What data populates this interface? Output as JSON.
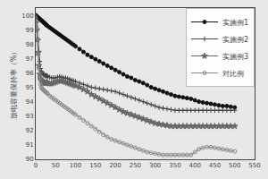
{
  "chart_data": {
    "type": "line",
    "ylabel": "放电容量保持率（%）",
    "xlim": [
      0,
      550
    ],
    "ylim": [
      90,
      100.5
    ],
    "xticks": [
      0,
      50,
      100,
      150,
      200,
      250,
      300,
      350,
      400,
      450,
      500,
      550
    ],
    "yticks": [
      90,
      91,
      92,
      93,
      94,
      95,
      96,
      97,
      98,
      99,
      100
    ],
    "grid": false,
    "legend": "upper right",
    "x": [
      0,
      2,
      4,
      6,
      8,
      10,
      12,
      14,
      16,
      18,
      20,
      22,
      24,
      26,
      28,
      30,
      35,
      40,
      45,
      50,
      55,
      60,
      65,
      70,
      75,
      80,
      85,
      90,
      95,
      100,
      110,
      120,
      130,
      140,
      150,
      160,
      170,
      180,
      190,
      200,
      210,
      220,
      230,
      240,
      250,
      260,
      270,
      280,
      290,
      300,
      310,
      320,
      330,
      340,
      350,
      360,
      370,
      380,
      390,
      400,
      410,
      420,
      430,
      440,
      450,
      460,
      470,
      480,
      490,
      500
    ],
    "series": [
      {
        "name": "实施例1",
        "color": "#111111",
        "marker": "circle",
        "values": [
          100,
          99.95,
          99.9,
          99.85,
          99.8,
          99.75,
          99.7,
          99.65,
          99.6,
          99.55,
          99.5,
          99.45,
          99.4,
          99.35,
          99.3,
          99.25,
          99.15,
          99.05,
          98.95,
          98.85,
          98.75,
          98.65,
          98.55,
          98.45,
          98.35,
          98.25,
          98.15,
          98.05,
          97.95,
          97.85,
          97.65,
          97.45,
          97.25,
          97.1,
          96.95,
          96.8,
          96.65,
          96.5,
          96.35,
          96.2,
          96.05,
          95.9,
          95.75,
          95.65,
          95.5,
          95.4,
          95.3,
          95.15,
          95.0,
          94.9,
          94.8,
          94.7,
          94.6,
          94.5,
          94.4,
          94.35,
          94.3,
          94.25,
          94.2,
          94.1,
          94.0,
          93.95,
          93.9,
          93.85,
          93.8,
          93.75,
          93.7,
          93.7,
          93.65,
          93.6
        ]
      },
      {
        "name": "实施例2",
        "color": "#444444",
        "marker": "cross",
        "values": [
          100,
          99.5,
          99.0,
          98.3,
          97.5,
          96.8,
          96.3,
          96.1,
          96.0,
          95.95,
          95.9,
          95.85,
          95.8,
          95.8,
          95.8,
          95.75,
          95.7,
          95.65,
          95.65,
          95.65,
          95.7,
          95.75,
          95.7,
          95.65,
          95.65,
          95.6,
          95.55,
          95.5,
          95.45,
          95.4,
          95.3,
          95.2,
          95.1,
          95.0,
          94.95,
          94.9,
          94.85,
          94.8,
          94.75,
          94.7,
          94.6,
          94.5,
          94.4,
          94.3,
          94.2,
          94.1,
          94.0,
          93.9,
          93.8,
          93.7,
          93.6,
          93.55,
          93.5,
          93.45,
          93.4,
          93.4,
          93.4,
          93.4,
          93.4,
          93.4,
          93.4,
          93.4,
          93.4,
          93.4,
          93.4,
          93.4,
          93.4,
          93.4,
          93.4,
          93.4
        ]
      },
      {
        "name": "实施例3",
        "color": "#666666",
        "marker": "star",
        "values": [
          99.5,
          99.0,
          98.3,
          97.4,
          96.5,
          95.9,
          95.6,
          95.5,
          95.4,
          95.35,
          95.3,
          95.3,
          95.3,
          95.3,
          95.35,
          95.3,
          95.25,
          95.25,
          95.3,
          95.35,
          95.4,
          95.45,
          95.45,
          95.4,
          95.35,
          95.3,
          95.25,
          95.2,
          95.15,
          95.1,
          95.0,
          94.85,
          94.7,
          94.5,
          94.35,
          94.2,
          94.05,
          93.9,
          93.75,
          93.6,
          93.45,
          93.3,
          93.2,
          93.1,
          93.0,
          92.9,
          92.8,
          92.7,
          92.6,
          92.5,
          92.45,
          92.4,
          92.35,
          92.3,
          92.3,
          92.3,
          92.3,
          92.3,
          92.3,
          92.3,
          92.3,
          92.3,
          92.3,
          92.3,
          92.3,
          92.3,
          92.3,
          92.3,
          92.3,
          92.3
        ]
      },
      {
        "name": "对比例",
        "color": "#888888",
        "marker": "circle-open",
        "values": [
          99.8,
          99.2,
          98.4,
          97.3,
          96.3,
          95.6,
          95.2,
          95.0,
          94.9,
          94.85,
          94.8,
          94.75,
          94.7,
          94.65,
          94.6,
          94.55,
          94.4,
          94.3,
          94.2,
          94.1,
          94.0,
          93.9,
          93.8,
          93.7,
          93.6,
          93.5,
          93.4,
          93.3,
          93.2,
          93.1,
          92.9,
          92.7,
          92.5,
          92.3,
          92.1,
          91.9,
          91.7,
          91.55,
          91.4,
          91.3,
          91.2,
          91.1,
          91.0,
          90.9,
          90.8,
          90.7,
          90.6,
          90.5,
          90.45,
          90.4,
          90.35,
          90.3,
          90.3,
          90.3,
          90.3,
          90.3,
          90.3,
          90.3,
          90.3,
          90.5,
          90.7,
          90.8,
          90.85,
          90.85,
          90.8,
          90.75,
          90.7,
          90.65,
          90.6,
          90.55
        ]
      }
    ]
  }
}
